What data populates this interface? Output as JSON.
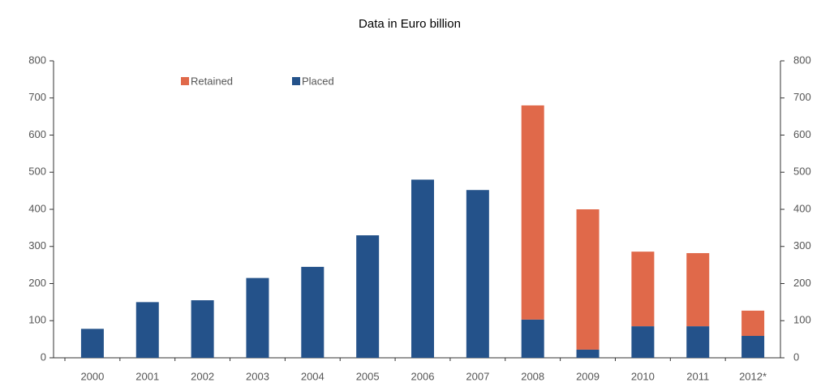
{
  "chart_data": {
    "type": "stacked_bar",
    "title": "Data in Euro billion",
    "categories": [
      "2000",
      "2001",
      "2002",
      "2003",
      "2004",
      "2005",
      "2006",
      "2007",
      "2008",
      "2009",
      "2010",
      "2011",
      "2012*"
    ],
    "series": [
      {
        "name": "Placed",
        "color": "#24528a",
        "values": [
          78,
          150,
          155,
          215,
          245,
          330,
          480,
          452,
          103,
          22,
          85,
          85,
          59
        ]
      },
      {
        "name": "Retained",
        "color": "#e0694a",
        "values": [
          0,
          0,
          0,
          0,
          0,
          0,
          0,
          0,
          577,
          378,
          201,
          197,
          68
        ]
      }
    ],
    "ylim": [
      0,
      800
    ],
    "yticks": [
      0,
      100,
      200,
      300,
      400,
      500,
      600,
      700,
      800
    ],
    "y2lim": [
      0,
      800
    ],
    "y2ticks": [
      0,
      100,
      200,
      300,
      400,
      500,
      600,
      700,
      800
    ],
    "legend": "top-left",
    "grid": false
  }
}
